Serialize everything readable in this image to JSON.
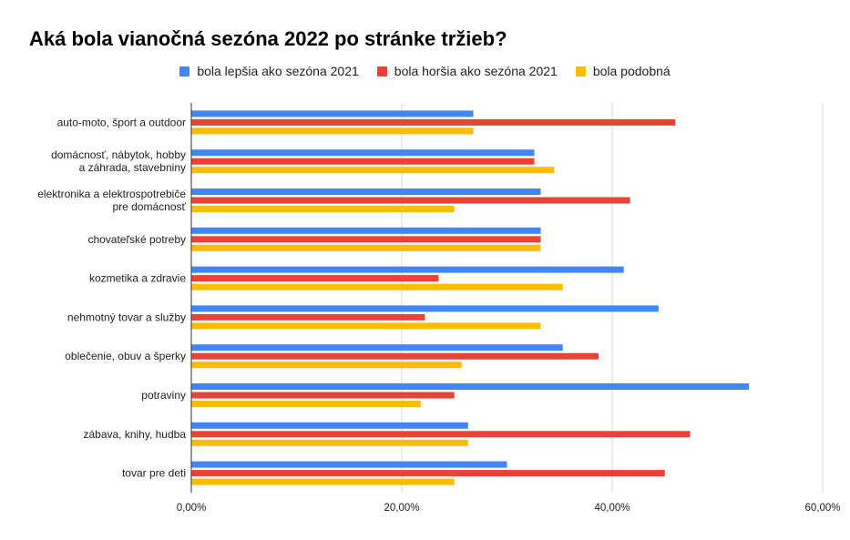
{
  "chart_data": {
    "type": "bar",
    "orientation": "horizontal",
    "title": "Aká bola vianočná sezóna 2022 po stránke tržieb?",
    "categories": [
      [
        "auto-moto, šport a outdoor"
      ],
      [
        "domácnosť, nábytok, hobby",
        "a záhrada, stavebniny"
      ],
      [
        "elektronika a elektrospotrebiče",
        "pre domácnosť"
      ],
      [
        "chovateľské potreby"
      ],
      [
        "kozmetika a zdravie"
      ],
      [
        "nehmotný tovar a služby"
      ],
      [
        "oblečenie, obuv a šperky"
      ],
      [
        "potraviny"
      ],
      [
        "zábava, knihy, hudba"
      ],
      [
        "tovar pre deti"
      ]
    ],
    "series": [
      {
        "name": "bola lepšia ako sezóna 2021",
        "color": "#4285F4",
        "values": [
          26.8,
          32.6,
          33.2,
          33.2,
          41.1,
          44.4,
          35.3,
          53.0,
          26.3,
          30.0
        ]
      },
      {
        "name": "bola horšia ako sezóna 2021",
        "color": "#EA4335",
        "values": [
          46.0,
          32.6,
          41.7,
          33.2,
          23.5,
          22.2,
          38.7,
          25.0,
          47.4,
          45.0
        ]
      },
      {
        "name": "bola podobná",
        "color": "#FBBC04",
        "values": [
          26.8,
          34.5,
          25.0,
          33.2,
          35.3,
          33.2,
          25.7,
          21.8,
          26.3,
          25.0
        ]
      }
    ],
    "xlim": [
      0,
      60
    ],
    "xticks": [
      0,
      20,
      40,
      60
    ],
    "xtick_labels": [
      "0,00%",
      "20,00%",
      "40,00%",
      "60,00%"
    ],
    "grid": "vertical",
    "legend_position": "top"
  }
}
